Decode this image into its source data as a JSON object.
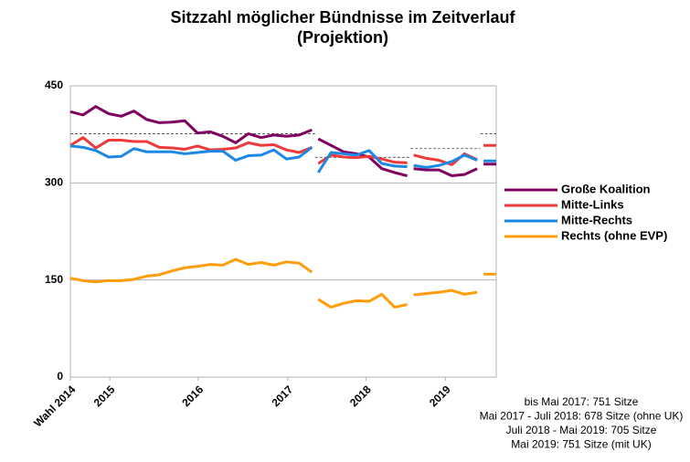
{
  "chart_data": {
    "type": "line",
    "title": "Sitzzahl möglicher Bündnisse im Zeitverlauf",
    "subtitle": "(Projektion)",
    "x": [
      0,
      2,
      4,
      6,
      8,
      10,
      12,
      14,
      16,
      18,
      20,
      22,
      24,
      26,
      28,
      30,
      32,
      34,
      36,
      38,
      38.5,
      39,
      41,
      43,
      45,
      47,
      49,
      51,
      53,
      53.5,
      54,
      56,
      58,
      60,
      62,
      64,
      64.5,
      65,
      67
    ],
    "series": [
      {
        "name": "Große Koalition",
        "color": "#800060",
        "values": [
          410,
          405,
          418,
          407,
          403,
          411,
          398,
          393,
          394,
          396,
          377,
          379,
          372,
          362,
          376,
          370,
          374,
          372,
          374,
          382,
          null,
          368,
          358,
          348,
          345,
          340,
          322,
          316,
          311,
          null,
          322,
          320,
          320,
          311,
          313,
          322,
          null,
          329,
          329
        ]
      },
      {
        "name": "Mitte-Links",
        "color": "#ee3a3a",
        "values": [
          358,
          370,
          354,
          366,
          366,
          364,
          364,
          355,
          354,
          352,
          357,
          351,
          352,
          354,
          362,
          358,
          359,
          351,
          347,
          355,
          null,
          330,
          343,
          340,
          339,
          341,
          337,
          332,
          331,
          null,
          343,
          338,
          335,
          328,
          345,
          336,
          null,
          358,
          358
        ]
      },
      {
        "name": "Mitte-Rechts",
        "color": "#1e88e5",
        "values": [
          357,
          355,
          350,
          340,
          341,
          353,
          348,
          348,
          348,
          345,
          347,
          349,
          349,
          335,
          342,
          343,
          351,
          337,
          340,
          355,
          null,
          316,
          347,
          345,
          343,
          350,
          330,
          326,
          325,
          null,
          327,
          324,
          327,
          333,
          343,
          335,
          null,
          334,
          334
        ]
      },
      {
        "name": "Rechts (ohne EVP)",
        "color": "#ff9d0a",
        "values": [
          153,
          149,
          147,
          149,
          149,
          151,
          156,
          158,
          164,
          169,
          171,
          174,
          173,
          182,
          174,
          177,
          173,
          178,
          176,
          162,
          null,
          120,
          108,
          114,
          118,
          117,
          128,
          108,
          112,
          null,
          127,
          129,
          131,
          134,
          128,
          131,
          null,
          159,
          159
        ]
      }
    ],
    "majority_lines": [
      {
        "value": 376,
        "x": [
          0,
          38.5
        ]
      },
      {
        "value": 339.5,
        "x": [
          38.5,
          53.5
        ]
      },
      {
        "value": 353,
        "x": [
          53.5,
          64.5
        ]
      },
      {
        "value": 376,
        "x": [
          64.5,
          67
        ]
      }
    ],
    "xlim": [
      0,
      67
    ],
    "xticks": [
      {
        "value": 0,
        "label": "Wahl 2014"
      },
      {
        "value": 6.2,
        "label": "2015"
      },
      {
        "value": 20.1,
        "label": "2016"
      },
      {
        "value": 34.2,
        "label": "2017"
      },
      {
        "value": 46.5,
        "label": "2018"
      },
      {
        "value": 59,
        "label": "2019"
      }
    ],
    "ylim": [
      0,
      450
    ],
    "yticks": [
      0,
      150,
      300,
      450
    ],
    "grid": true,
    "legend": "right",
    "notes": [
      "bis Mai 2017: 751 Sitze",
      "Mai 2017 - Juli 2018: 678 Sitze (ohne UK)",
      "Juli 2018 - Mai 2019: 705 Sitze",
      "Mai 2019: 751 Sitze (mit UK)"
    ]
  }
}
